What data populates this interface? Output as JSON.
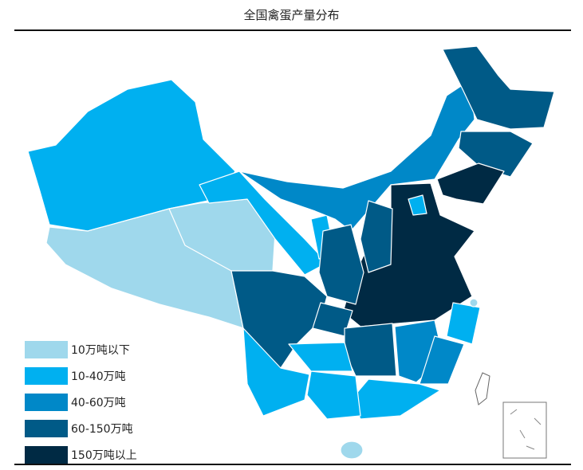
{
  "title": "全国禽蛋产量分布",
  "legend": [
    {
      "label": "10万吨以下",
      "color": "#9fd8ec"
    },
    {
      "label": "10-40万吨",
      "color": "#00b0f0"
    },
    {
      "label": "40-60万吨",
      "color": "#0088c8"
    },
    {
      "label": "60-150万吨",
      "color": "#005a87"
    },
    {
      "label": "150万吨以上",
      "color": "#002a44"
    }
  ],
  "regions": {
    "xinjiang": 1,
    "tibet": 0,
    "qinghai": 0,
    "gansu": 1,
    "ningxia": 1,
    "inner-mongolia": 2,
    "heilongjiang": 3,
    "jilin": 3,
    "liaoning": 4,
    "north-plain": 4,
    "beijing-tianjin": 1,
    "shanxi": 3,
    "shaanxi": 3,
    "sichuan": 3,
    "chongqing": 3,
    "hunan": 3,
    "jiangxi": 2,
    "zhejiang": 1,
    "fujian": 2,
    "guangdong": 1,
    "guangxi": 1,
    "yunnan": 1,
    "guizhou": 1,
    "hainan": 0,
    "shanghai": 0
  }
}
